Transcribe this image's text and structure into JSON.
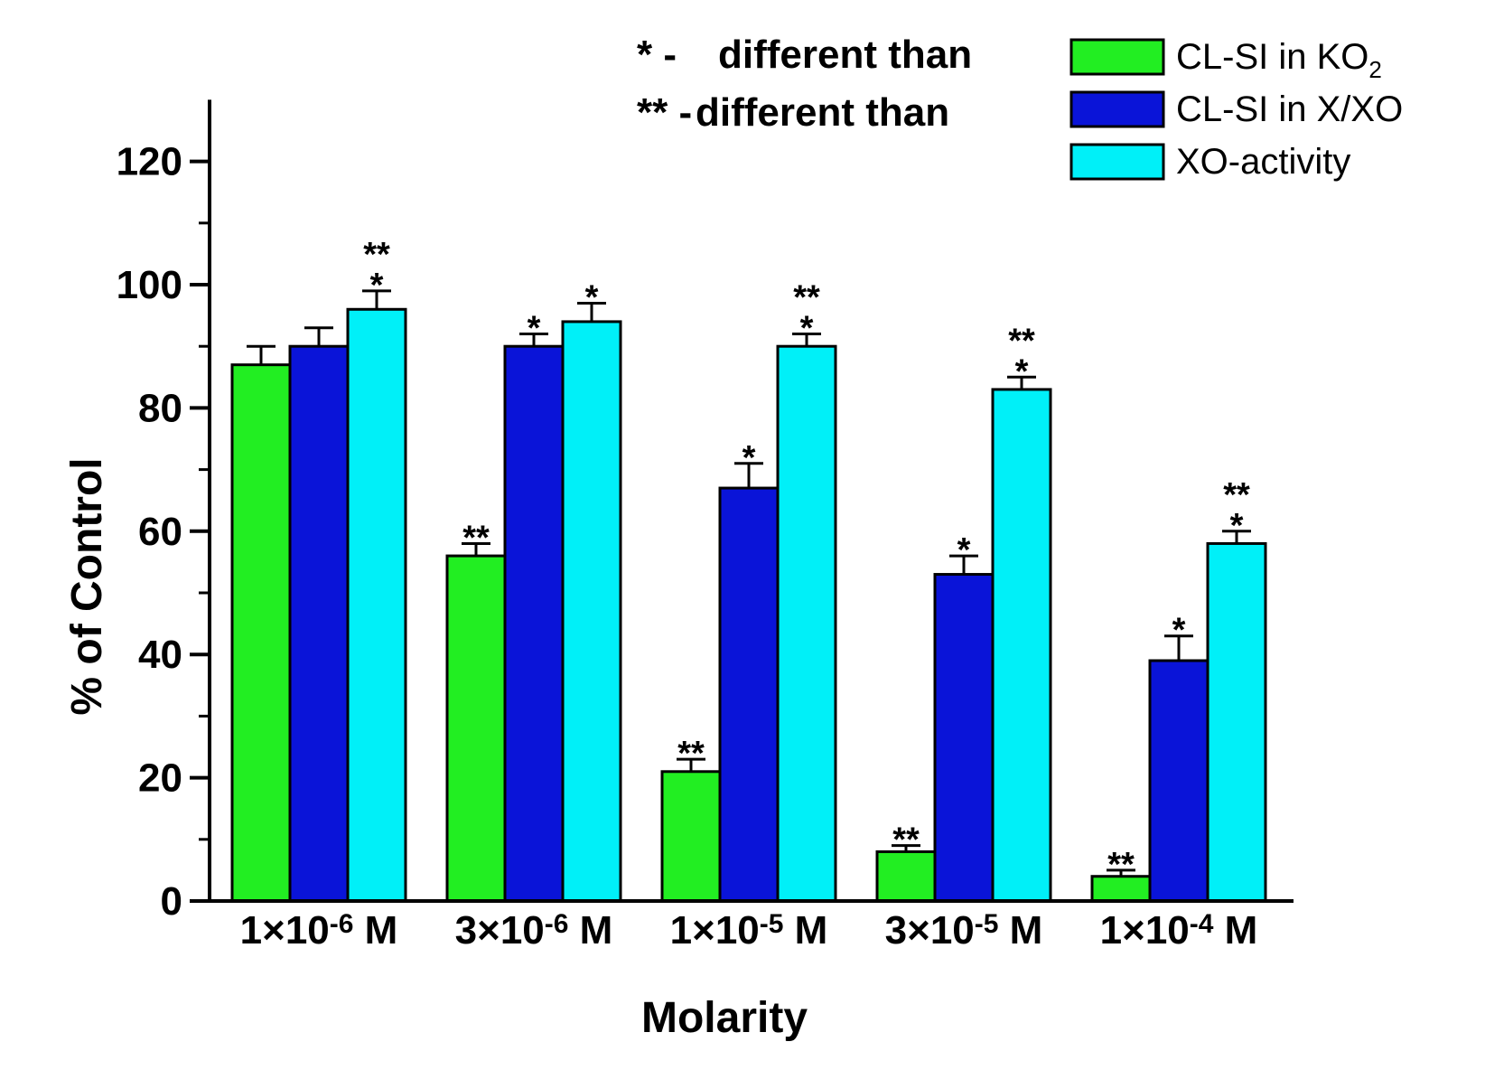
{
  "chart_data": {
    "type": "bar",
    "xlabel": "Molarity",
    "ylabel": "% of Control",
    "ylim": [
      0,
      130
    ],
    "yticks": [
      0,
      20,
      40,
      60,
      80,
      100,
      120
    ],
    "categories": [
      {
        "mant": "1×10",
        "exp": "-6",
        "unit": " M"
      },
      {
        "mant": "3×10",
        "exp": "-6",
        "unit": " M"
      },
      {
        "mant": "1×10",
        "exp": "-5",
        "unit": " M"
      },
      {
        "mant": "3×10",
        "exp": "-5",
        "unit": " M"
      },
      {
        "mant": "1×10",
        "exp": "-4",
        "unit": " M"
      }
    ],
    "series": [
      {
        "name": "CL-SI in KO",
        "name_sub": "2",
        "color": "#22ee22",
        "values": [
          87,
          56,
          21,
          8,
          4
        ],
        "errors": [
          3,
          2,
          2,
          1,
          1
        ],
        "marks": [
          [],
          [
            "**"
          ],
          [
            "**"
          ],
          [
            "**"
          ],
          [
            "**"
          ]
        ]
      },
      {
        "name": "CL-SI in X/XO",
        "color": "#0a14d8",
        "values": [
          90,
          90,
          67,
          53,
          39
        ],
        "errors": [
          3,
          2,
          4,
          3,
          4
        ],
        "marks": [
          [],
          [
            "*"
          ],
          [
            "*"
          ],
          [
            "*"
          ],
          [
            "*"
          ]
        ]
      },
      {
        "name": "XO-activity",
        "color": "#00f0f8",
        "values": [
          96,
          94,
          90,
          83,
          58
        ],
        "errors": [
          3,
          3,
          2,
          2,
          2
        ],
        "marks": [
          [
            "**",
            "*"
          ],
          [
            "*"
          ],
          [
            "**",
            "*"
          ],
          [
            "**",
            "*"
          ],
          [
            "**",
            "*"
          ]
        ]
      }
    ],
    "legend_position": "top-right",
    "notes": [
      {
        "symbol": "* -",
        "text": "different than"
      },
      {
        "symbol": "** -",
        "text": "different than"
      }
    ]
  }
}
